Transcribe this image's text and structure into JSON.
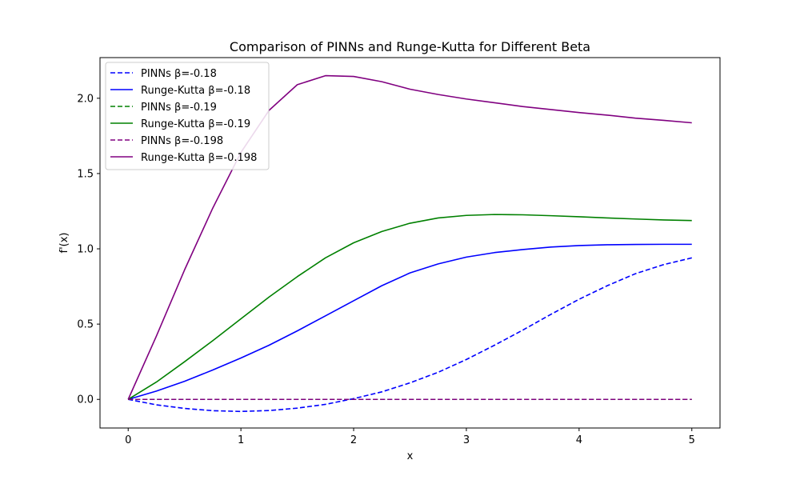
{
  "chart_data": {
    "type": "line",
    "title": "Comparison of PINNs and Runge-Kutta for Different Beta",
    "xlabel": "x",
    "ylabel": "f'(x)",
    "xlim": [
      -0.25,
      5.25
    ],
    "ylim": [
      -0.19,
      2.27
    ],
    "xticks": [
      0,
      1,
      2,
      3,
      4,
      5
    ],
    "yticks": [
      0.0,
      0.5,
      1.0,
      1.5,
      2.0
    ],
    "xtick_labels": [
      "0",
      "1",
      "2",
      "3",
      "4",
      "5"
    ],
    "ytick_labels": [
      "0.0",
      "0.5",
      "1.0",
      "1.5",
      "2.0"
    ],
    "grid": false,
    "legend_position": "top-left",
    "series": [
      {
        "name": "PINNs β=-0.18",
        "color": "#0000ff",
        "style": "dashed",
        "x": [
          0,
          0.25,
          0.5,
          0.75,
          1.0,
          1.25,
          1.5,
          1.75,
          2.0,
          2.25,
          2.5,
          2.75,
          3.0,
          3.25,
          3.5,
          3.75,
          4.0,
          4.25,
          4.5,
          4.75,
          5.0
        ],
        "y": [
          0,
          -0.036,
          -0.06,
          -0.075,
          -0.08,
          -0.074,
          -0.058,
          -0.033,
          0.005,
          0.05,
          0.11,
          0.18,
          0.265,
          0.36,
          0.46,
          0.565,
          0.665,
          0.755,
          0.835,
          0.895,
          0.94
        ]
      },
      {
        "name": "Runge-Kutta β=-0.18",
        "color": "#0000ff",
        "style": "solid",
        "x": [
          0,
          0.25,
          0.5,
          0.75,
          1.0,
          1.25,
          1.5,
          1.75,
          2.0,
          2.25,
          2.5,
          2.75,
          3.0,
          3.25,
          3.5,
          3.75,
          4.0,
          4.25,
          4.5,
          4.75,
          5.0
        ],
        "y": [
          0,
          0.055,
          0.12,
          0.195,
          0.275,
          0.36,
          0.455,
          0.555,
          0.655,
          0.755,
          0.84,
          0.9,
          0.945,
          0.975,
          0.995,
          1.012,
          1.022,
          1.027,
          1.029,
          1.03,
          1.03
        ]
      },
      {
        "name": "PINNs β=-0.19",
        "color": "#008000",
        "style": "dashed",
        "x": [
          0,
          5
        ],
        "y": [
          0,
          0
        ]
      },
      {
        "name": "Runge-Kutta β=-0.19",
        "color": "#008000",
        "style": "solid",
        "x": [
          0,
          0.25,
          0.5,
          0.75,
          1.0,
          1.25,
          1.5,
          1.75,
          2.0,
          2.25,
          2.5,
          2.75,
          3.0,
          3.25,
          3.5,
          3.75,
          4.0,
          4.25,
          4.5,
          4.75,
          5.0
        ],
        "y": [
          0,
          0.115,
          0.25,
          0.39,
          0.535,
          0.68,
          0.815,
          0.94,
          1.04,
          1.115,
          1.17,
          1.205,
          1.222,
          1.228,
          1.226,
          1.22,
          1.213,
          1.205,
          1.198,
          1.192,
          1.188
        ]
      },
      {
        "name": "PINNs β=-0.198",
        "color": "#800080",
        "style": "dashed",
        "x": [
          0,
          5
        ],
        "y": [
          0,
          0
        ]
      },
      {
        "name": "Runge-Kutta β=-0.198",
        "color": "#800080",
        "style": "solid",
        "x": [
          0,
          0.25,
          0.5,
          0.75,
          1.0,
          1.25,
          1.5,
          1.75,
          2.0,
          2.25,
          2.5,
          2.75,
          3.0,
          3.25,
          3.5,
          3.75,
          4.0,
          4.25,
          4.5,
          4.75,
          5.0
        ],
        "y": [
          0,
          0.42,
          0.86,
          1.27,
          1.64,
          1.92,
          2.09,
          2.15,
          2.145,
          2.11,
          2.06,
          2.025,
          1.995,
          1.97,
          1.945,
          1.925,
          1.905,
          1.888,
          1.868,
          1.853,
          1.837
        ]
      }
    ]
  }
}
